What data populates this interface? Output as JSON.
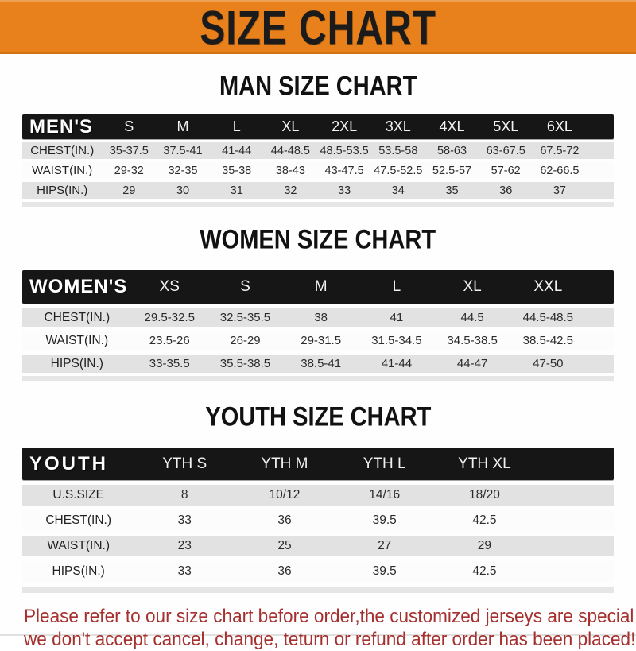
{
  "banner": {
    "title": "SIZE CHART"
  },
  "colors": {
    "banner_bg": "#e8811c",
    "banner_text": "#1b1b1b",
    "table_header_bg": "#161616",
    "row_shade": "#e2e2e2",
    "row_light": "#fcfcfc",
    "footer_text": "#a5302e"
  },
  "sections": {
    "men": {
      "heading": "MAN SIZE CHART"
    },
    "women": {
      "heading": "WOMEN SIZE CHART"
    },
    "youth": {
      "heading": "YOUTH SIZE CHART"
    }
  },
  "tables": {
    "men": {
      "header_label": "MEN'S",
      "columns": [
        "S",
        "M",
        "L",
        "XL",
        "2XL",
        "3XL",
        "4XL",
        "5XL",
        "6XL"
      ],
      "rows": [
        {
          "label": "CHEST(IN.)",
          "values": [
            "35-37.5",
            "37.5-41",
            "41-44",
            "44-48.5",
            "48.5-53.5",
            "53.5-58",
            "58-63",
            "63-67.5",
            "67.5-72"
          ]
        },
        {
          "label": "WAIST(IN.)",
          "values": [
            "29-32",
            "32-35",
            "35-38",
            "38-43",
            "43-47.5",
            "47.5-52.5",
            "52.5-57",
            "57-62",
            "62-66.5"
          ]
        },
        {
          "label": "HIPS(IN.)",
          "values": [
            "29",
            "30",
            "31",
            "32",
            "33",
            "34",
            "35",
            "36",
            "37"
          ]
        }
      ]
    },
    "women": {
      "header_label": "WOMEN'S",
      "columns": [
        "XS",
        "S",
        "M",
        "L",
        "XL",
        "XXL"
      ],
      "rows": [
        {
          "label": "CHEST(IN.)",
          "values": [
            "29.5-32.5",
            "32.5-35.5",
            "38",
            "41",
            "44.5",
            "44.5-48.5"
          ]
        },
        {
          "label": "WAIST(IN.)",
          "values": [
            "23.5-26",
            "26-29",
            "29-31.5",
            "31.5-34.5",
            "34.5-38.5",
            "38.5-42.5"
          ]
        },
        {
          "label": "HIPS(IN.)",
          "values": [
            "33-35.5",
            "35.5-38.5",
            "38.5-41",
            "41-44",
            "44-47",
            "47-50"
          ]
        }
      ]
    },
    "youth": {
      "header_label": "YOUTH",
      "columns": [
        "YTH S",
        "YTH M",
        "YTH L",
        "YTH XL"
      ],
      "rows": [
        {
          "label": "U.S.SIZE",
          "values": [
            "8",
            "10/12",
            "14/16",
            "18/20"
          ]
        },
        {
          "label": "CHEST(IN.)",
          "values": [
            "33",
            "36",
            "39.5",
            "42.5"
          ]
        },
        {
          "label": "WAIST(IN.)",
          "values": [
            "23",
            "25",
            "27",
            "29"
          ]
        },
        {
          "label": "HIPS(IN.)",
          "values": [
            "33",
            "36",
            "39.5",
            "42.5"
          ]
        }
      ]
    }
  },
  "footer": {
    "line1": "Please refer to our size chart before order,the customized jerseys are special products,",
    "line2": "we don't accept cancel, change, teturn or refund after order has been placed!"
  }
}
